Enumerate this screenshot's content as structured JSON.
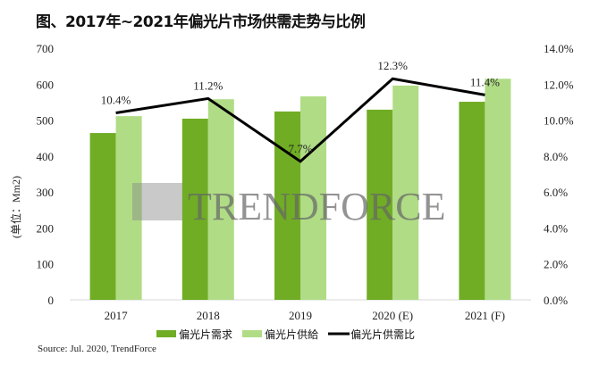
{
  "title": "图、2017年~2021年偏光片市场供需走势与比例",
  "source": "Source: Jul. 2020, TrendForce",
  "watermark": "TRENDFORCE",
  "chart_data": {
    "type": "bar+line",
    "title": "图、2017年~2021年偏光片市场供需走势与比例",
    "ylabel": "(单位：Mm2)",
    "ylim": [
      0,
      700
    ],
    "y2lim": [
      0,
      0.14
    ],
    "yticks": [
      "0",
      "100",
      "200",
      "300",
      "400",
      "500",
      "600",
      "700"
    ],
    "y2ticks": [
      "0.0%",
      "2.0%",
      "4.0%",
      "6.0%",
      "8.0%",
      "10.0%",
      "12.0%",
      "14.0%"
    ],
    "categories": [
      "2017",
      "2018",
      "2019",
      "2020 (E)",
      "2021 (F)"
    ],
    "series": [
      {
        "name": "偏光片需求",
        "type": "bar",
        "color": "#70ad25",
        "values": [
          464,
          504,
          524,
          529,
          551
        ]
      },
      {
        "name": "偏光片供給",
        "type": "bar",
        "color": "#b0dc86",
        "values": [
          511,
          558,
          566,
          596,
          615
        ]
      },
      {
        "name": "偏光片供需比",
        "type": "line",
        "axis": "right",
        "color": "#000000",
        "values": [
          0.104,
          0.112,
          0.077,
          0.123,
          0.114
        ],
        "labels": [
          "10.4%",
          "11.2%",
          "7.7%",
          "12.3%",
          "11.4%"
        ]
      }
    ],
    "grid": false,
    "legend": "bottom"
  }
}
